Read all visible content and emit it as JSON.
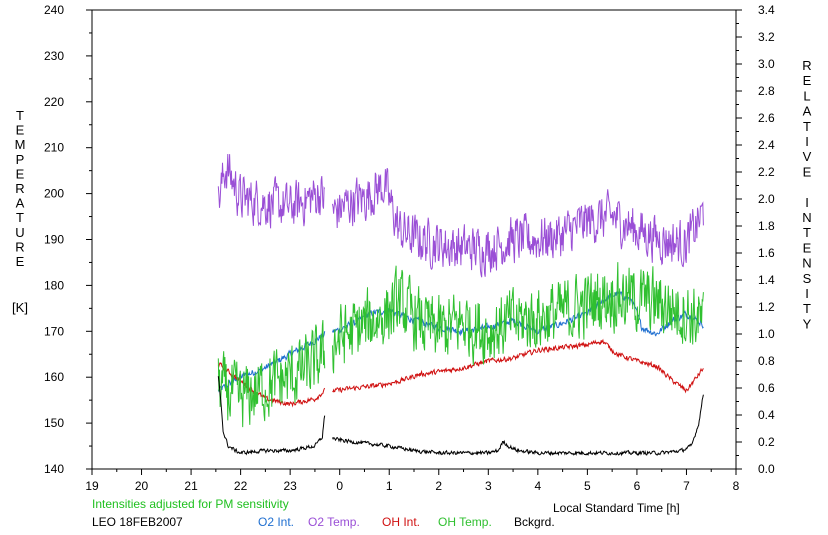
{
  "chart_data": {
    "type": "line",
    "left_axis_letters": [
      "T",
      "E",
      "M",
      "P",
      "E",
      "R",
      "A",
      "T",
      "U",
      "R",
      "E"
    ],
    "left_axis_unit": "[K]",
    "right_axis_letters": [
      "R",
      "E",
      "L",
      "A",
      "T",
      "I",
      "V",
      "E",
      "",
      "I",
      "N",
      "T",
      "E",
      "N",
      "S",
      "I",
      "T",
      "Y"
    ],
    "xlabel": "Local Standard Time [h]",
    "xlim": [
      19,
      32
    ],
    "x_ticks": [
      19,
      20,
      21,
      22,
      23,
      24,
      25,
      26,
      27,
      28,
      29,
      30,
      31,
      32
    ],
    "x_tick_labels": [
      "19",
      "20",
      "21",
      "22",
      "23",
      "0",
      "1",
      "2",
      "3",
      "4",
      "5",
      "6",
      "7",
      "8"
    ],
    "ylim_left": [
      140,
      240
    ],
    "y_ticks_left": [
      "140",
      "150",
      "160",
      "170",
      "180",
      "190",
      "200",
      "210",
      "220",
      "230",
      "240"
    ],
    "ylim_right": [
      0,
      3.4
    ],
    "y_ticks_right": [
      "0.0",
      "0.2",
      "0.4",
      "0.6",
      "0.8",
      "1.0",
      "1.2",
      "1.4",
      "1.6",
      "1.8",
      "2.0",
      "2.2",
      "2.4",
      "2.6",
      "2.8",
      "3.0",
      "3.2",
      "3.4"
    ],
    "note": "Intensities adjusted for PM sensitivity",
    "station": "LEO 18FEB2007",
    "colors": {
      "o2_int": "#1f6fd0",
      "o2_temp": "#9a4fd6",
      "oh_int": "#d01010",
      "oh_temp": "#30c030",
      "bckgrd": "#000000",
      "note": "#20c020"
    },
    "gaps": [
      [
        23.7,
        23.85
      ]
    ],
    "series": [
      {
        "name": "O2 Int.",
        "key": "o2_int",
        "axis": "right",
        "noise": 0.035,
        "x": [
          21.55,
          22.0,
          22.5,
          23.0,
          23.5,
          23.7,
          23.9,
          24.3,
          24.6,
          25.0,
          25.5,
          26.0,
          26.5,
          27.0,
          27.5,
          28.0,
          28.5,
          29.0,
          29.3,
          29.6,
          29.9,
          30.1,
          30.4,
          30.7,
          31.0,
          31.35
        ],
        "y": [
          0.58,
          0.68,
          0.75,
          0.85,
          0.95,
          1.0,
          1.02,
          1.08,
          1.15,
          1.18,
          1.1,
          1.05,
          1.02,
          1.05,
          1.1,
          1.02,
          1.08,
          1.15,
          1.25,
          1.3,
          1.25,
          1.05,
          1.0,
          1.1,
          1.15,
          1.07
        ]
      },
      {
        "name": "O2 Temp.",
        "key": "o2_temp",
        "axis": "left",
        "noise": 7,
        "x": [
          21.55,
          21.7,
          22.0,
          22.5,
          23.0,
          23.6,
          23.9,
          24.2,
          24.5,
          24.9,
          25.2,
          25.6,
          26.0,
          26.5,
          27.0,
          27.5,
          28.0,
          28.5,
          29.0,
          29.5,
          30.0,
          30.5,
          31.0,
          31.35
        ],
        "y": [
          198,
          206,
          199,
          198,
          197,
          200,
          196,
          198,
          199,
          202,
          192,
          190,
          189,
          188,
          188,
          190,
          190,
          191,
          194,
          195,
          192,
          190,
          189,
          196
        ]
      },
      {
        "name": "OH Int.",
        "key": "oh_int",
        "axis": "right",
        "noise": 0.025,
        "x": [
          21.55,
          22.0,
          22.5,
          23.0,
          23.5,
          23.7,
          23.9,
          24.3,
          24.8,
          25.2,
          25.6,
          26.0,
          26.5,
          27.0,
          27.5,
          28.0,
          28.5,
          29.0,
          29.3,
          29.6,
          30.0,
          30.4,
          30.7,
          31.0,
          31.35
        ],
        "y": [
          0.78,
          0.65,
          0.52,
          0.48,
          0.52,
          0.58,
          0.58,
          0.6,
          0.62,
          0.65,
          0.7,
          0.72,
          0.75,
          0.8,
          0.82,
          0.88,
          0.9,
          0.92,
          0.95,
          0.85,
          0.8,
          0.76,
          0.66,
          0.58,
          0.75
        ]
      },
      {
        "name": "OH Temp.",
        "key": "oh_temp",
        "axis": "left",
        "noise": 10,
        "x": [
          21.55,
          22.0,
          22.5,
          23.0,
          23.5,
          23.7,
          23.9,
          24.3,
          24.8,
          25.2,
          25.6,
          26.0,
          26.5,
          27.0,
          27.5,
          28.0,
          28.5,
          29.0,
          29.5,
          30.0,
          30.5,
          31.0,
          31.35
        ],
        "y": [
          158,
          155,
          158,
          160,
          163,
          165,
          168,
          170,
          173,
          176,
          172,
          170,
          172,
          170,
          172,
          173,
          174,
          176,
          178,
          177,
          176,
          174,
          172
        ]
      },
      {
        "name": "Bckgrd.",
        "key": "bckgrd",
        "axis": "left",
        "noise": 0.7,
        "x": [
          21.55,
          21.6,
          21.65,
          21.75,
          21.9,
          22.0,
          22.5,
          23.0,
          23.5,
          23.65,
          23.7,
          23.75,
          23.9,
          24.2,
          24.6,
          25.0,
          25.5,
          26.0,
          26.5,
          27.0,
          27.2,
          27.3,
          27.4,
          27.6,
          28.0,
          28.5,
          29.0,
          29.5,
          30.0,
          30.5,
          30.9,
          31.1,
          31.25,
          31.35
        ],
        "y": [
          160,
          155,
          148,
          145,
          144,
          143.5,
          144,
          144,
          145,
          147,
          152,
          148,
          146.5,
          146,
          145.5,
          145,
          144,
          143.5,
          143.5,
          143.5,
          144,
          146,
          145,
          144,
          143.5,
          143.5,
          143.5,
          143.5,
          143.5,
          143.5,
          144,
          145,
          150,
          157
        ]
      }
    ],
    "legend": [
      "O2 Int.",
      "O2 Temp.",
      "OH Int.",
      "OH Temp.",
      "Bckgrd."
    ]
  }
}
